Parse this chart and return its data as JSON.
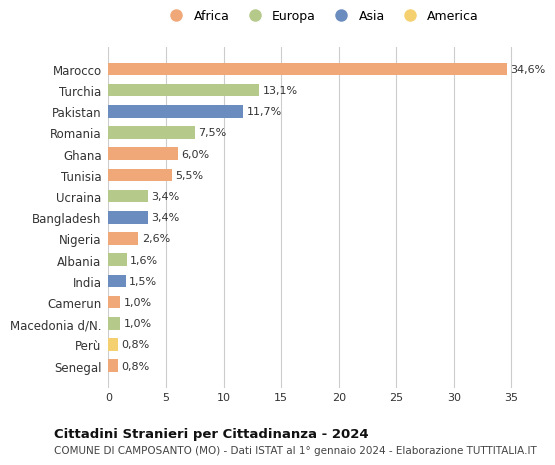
{
  "categories": [
    "Marocco",
    "Turchia",
    "Pakistan",
    "Romania",
    "Ghana",
    "Tunisia",
    "Ucraina",
    "Bangladesh",
    "Nigeria",
    "Albania",
    "India",
    "Camerun",
    "Macedonia d/N.",
    "Perù",
    "Senegal"
  ],
  "values": [
    34.6,
    13.1,
    11.7,
    7.5,
    6.0,
    5.5,
    3.4,
    3.4,
    2.6,
    1.6,
    1.5,
    1.0,
    1.0,
    0.8,
    0.8
  ],
  "labels": [
    "34,6%",
    "13,1%",
    "11,7%",
    "7,5%",
    "6,0%",
    "5,5%",
    "3,4%",
    "3,4%",
    "2,6%",
    "1,6%",
    "1,5%",
    "1,0%",
    "1,0%",
    "0,8%",
    "0,8%"
  ],
  "continents": [
    "Africa",
    "Europa",
    "Asia",
    "Europa",
    "Africa",
    "Africa",
    "Europa",
    "Asia",
    "Africa",
    "Europa",
    "Asia",
    "Africa",
    "Europa",
    "America",
    "Africa"
  ],
  "colors": {
    "Africa": "#F0A878",
    "Europa": "#B5C98A",
    "Asia": "#6B8CBE",
    "America": "#F5D070"
  },
  "legend_order": [
    "Africa",
    "Europa",
    "Asia",
    "America"
  ],
  "xlim": [
    0,
    37
  ],
  "xticks": [
    0,
    5,
    10,
    15,
    20,
    25,
    30,
    35
  ],
  "title": "Cittadini Stranieri per Cittadinanza - 2024",
  "subtitle": "COMUNE DI CAMPOSANTO (MO) - Dati ISTAT al 1° gennaio 2024 - Elaborazione TUTTITALIA.IT",
  "bg_color": "#ffffff",
  "grid_color": "#cccccc"
}
